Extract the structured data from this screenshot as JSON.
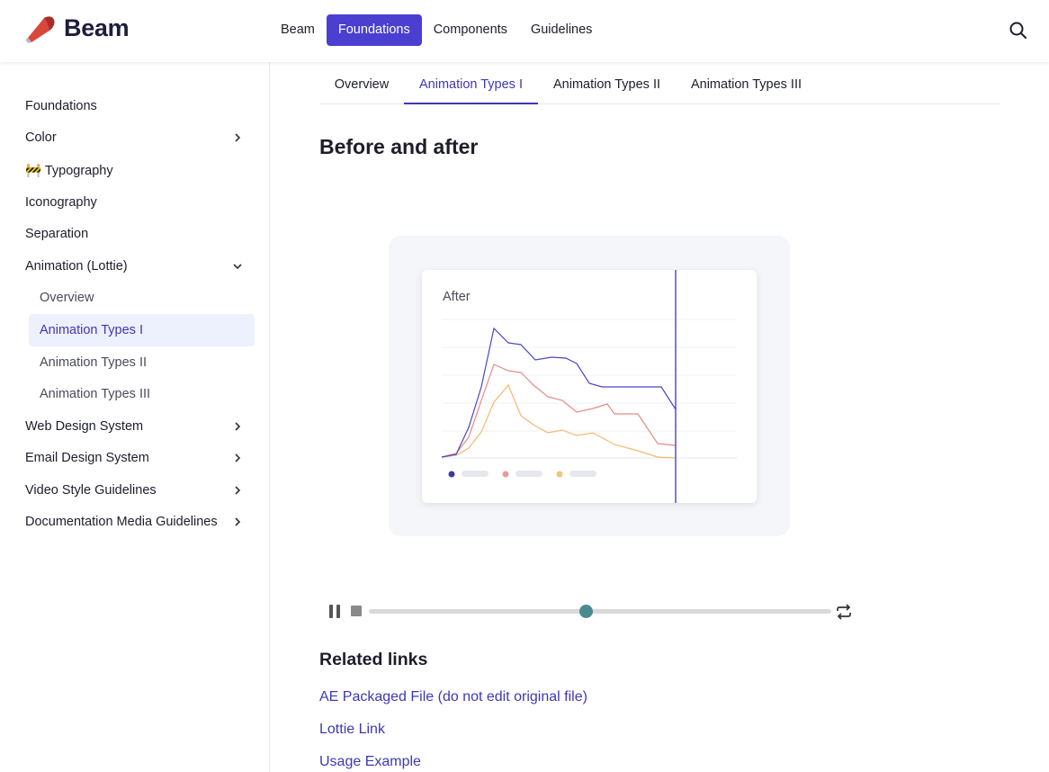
{
  "header": {
    "logo_text": "Beam",
    "nav": [
      {
        "label": "Beam",
        "active": false
      },
      {
        "label": "Foundations",
        "active": true
      },
      {
        "label": "Components",
        "active": false
      },
      {
        "label": "Guidelines",
        "active": false
      }
    ],
    "search_icon": "search-icon"
  },
  "sidebar": {
    "items": [
      {
        "label": "Foundations",
        "chevron": "none"
      },
      {
        "label": "Color",
        "chevron": "right"
      },
      {
        "label": "🚧 Typography",
        "chevron": "none"
      },
      {
        "label": "Iconography",
        "chevron": "none"
      },
      {
        "label": "Separation",
        "chevron": "none"
      },
      {
        "label": "Animation (Lottie)",
        "chevron": "down"
      }
    ],
    "sub_items": [
      {
        "label": "Overview",
        "active": false
      },
      {
        "label": "Animation Types I",
        "active": true
      },
      {
        "label": "Animation Types II",
        "active": false
      },
      {
        "label": "Animation Types III",
        "active": false
      }
    ],
    "bottom_items": [
      {
        "label": "Web Design System",
        "chevron": "right"
      },
      {
        "label": "Email Design System",
        "chevron": "right"
      },
      {
        "label": "Video Style Guidelines",
        "chevron": "right"
      },
      {
        "label": "Documentation Media Guidelines",
        "chevron": "right"
      }
    ]
  },
  "tabs": [
    {
      "label": "Overview",
      "active": false
    },
    {
      "label": "Animation Types I",
      "active": true
    },
    {
      "label": "Animation Types II",
      "active": false
    },
    {
      "label": "Animation Types III",
      "active": false
    }
  ],
  "main": {
    "section_title": "Before and after",
    "preview_label": "After",
    "related_title": "Related links",
    "related_links": [
      "AE Packaged File (do not edit original file)",
      "Lottie Link",
      "Usage Example"
    ]
  },
  "player": {
    "progress": 0.47,
    "pause_icon": "pause-icon",
    "stop_icon": "stop-icon",
    "loop_icon": "loop-icon"
  },
  "colors": {
    "accent": "#4a3fd1",
    "link": "#3f37b5",
    "series": [
      "#4a46c9",
      "#e88b85",
      "#f3b873"
    ],
    "thumb": "#4b8a93"
  }
}
